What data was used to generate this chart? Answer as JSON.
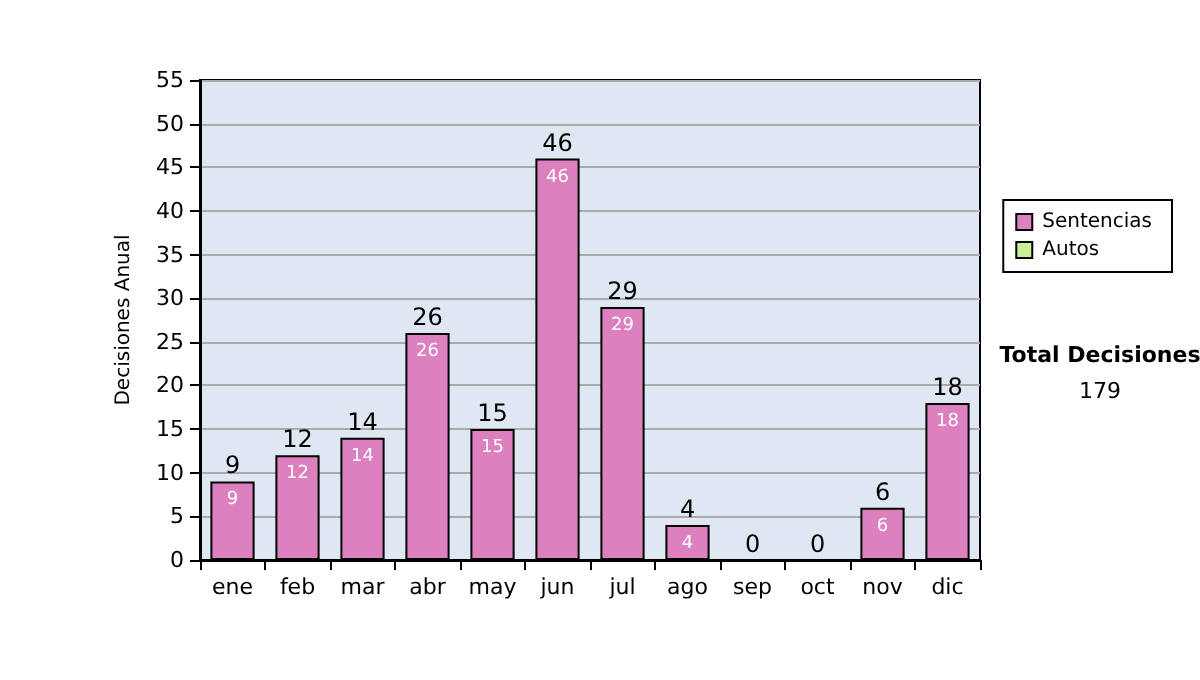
{
  "chart_data": {
    "type": "bar",
    "ylabel": "Decisiones Anual",
    "categories": [
      "ene",
      "feb",
      "mar",
      "abr",
      "may",
      "jun",
      "jul",
      "ago",
      "sep",
      "oct",
      "nov",
      "dic"
    ],
    "series": [
      {
        "name": "Sentencias",
        "color": "#dd80c0",
        "values": [
          9,
          12,
          14,
          26,
          15,
          46,
          29,
          4,
          0,
          0,
          6,
          18
        ],
        "value_labels": [
          "9",
          "12",
          "14",
          "26",
          "15",
          "46",
          "29",
          "4",
          null,
          null,
          "6",
          "18"
        ]
      },
      {
        "name": "Autos",
        "color": "#ccee99",
        "values": [
          0,
          0,
          0,
          0,
          0,
          0,
          0,
          0,
          0,
          0,
          0,
          0
        ]
      }
    ],
    "stacked": true,
    "totals": [
      "9",
      "12",
      "14",
      "26",
      "15",
      "46",
      "29",
      "4",
      "0",
      "0",
      "6",
      "18"
    ],
    "ylim": [
      0,
      55
    ],
    "yticks": [
      0,
      5,
      10,
      15,
      20,
      25,
      30,
      35,
      40,
      45,
      50,
      55
    ],
    "grid": "y",
    "legend": "right",
    "annotations": [
      "Total Decisiones",
      "179"
    ]
  }
}
